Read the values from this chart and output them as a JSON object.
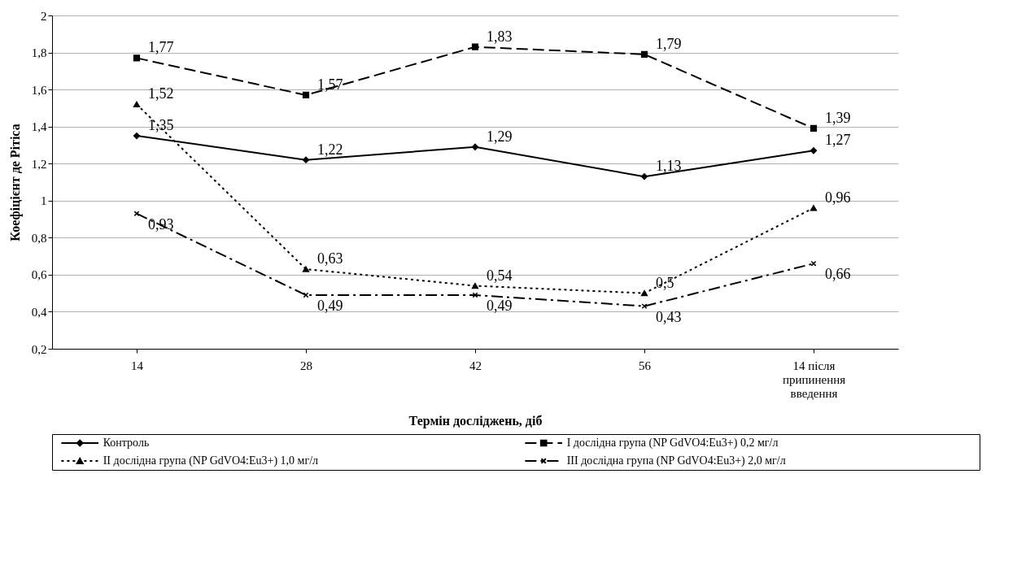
{
  "chart_data": {
    "type": "line",
    "xlabel": "Термін досліджень, діб",
    "ylabel": "Коефіцієнт де Рітіса",
    "categories": [
      "14",
      "28",
      "42",
      "56",
      "14 після припинення введення"
    ],
    "series": [
      {
        "name": "Контроль",
        "color": "#000000",
        "marker": "diamond",
        "line_style": "solid",
        "values": [
          1.35,
          1.22,
          1.29,
          1.13,
          1.27
        ],
        "value_labels": [
          "1,35",
          "1,22",
          "1,29",
          "1,13",
          "1,27"
        ]
      },
      {
        "name": "I дослідна група (NP GdVO4:Eu3+) 0,2 мг/л",
        "color": "#000000",
        "marker": "square",
        "line_style": "dashed",
        "values": [
          1.77,
          1.57,
          1.83,
          1.79,
          1.39
        ],
        "value_labels": [
          "1,77",
          "1,57",
          "1,83",
          "1,79",
          "1,39"
        ]
      },
      {
        "name": "II дослідна група (NP GdVO4:Eu3+) 1,0 мг/л",
        "color": "#000000",
        "marker": "triangle",
        "line_style": "dotted",
        "values": [
          1.52,
          0.63,
          0.54,
          0.5,
          0.96
        ],
        "value_labels": [
          "1,52",
          "0,63",
          "0,54",
          "0,5",
          "0,96"
        ]
      },
      {
        "name": "III дослідна група (NP GdVO4:Eu3+) 2,0 мг/л",
        "color": "#000000",
        "marker": "cross",
        "line_style": "dashdot",
        "values": [
          0.93,
          0.49,
          0.49,
          0.43,
          0.66
        ],
        "value_labels": [
          "0,93",
          "0,49",
          "0,49",
          "0,43",
          "0,66"
        ]
      }
    ],
    "ylim": [
      0.2,
      2
    ],
    "yticks": [
      {
        "value": 0.2,
        "label": "0,2"
      },
      {
        "value": 0.4,
        "label": "0,4"
      },
      {
        "value": 0.6,
        "label": "0,6"
      },
      {
        "value": 0.8,
        "label": "0,8"
      },
      1,
      {
        "value": 1.2,
        "label": "1,2"
      },
      {
        "value": 1.4,
        "label": "1,4"
      },
      {
        "value": 1.6,
        "label": "1,6"
      },
      {
        "value": 1.8,
        "label": "1,8"
      },
      2
    ],
    "grid": "y",
    "legend": "bottom"
  }
}
